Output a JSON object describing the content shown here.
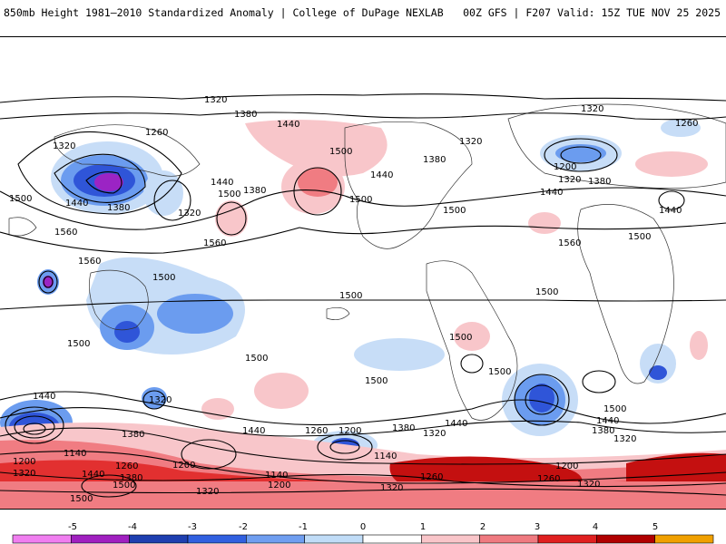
{
  "header": {
    "title_left": "850mb Height 1981–2010 Standardized Anomaly | College of DuPage NEXLAB",
    "title_right": "00Z GFS | F207 Valid: 15Z TUE NOV 25 2025"
  },
  "colorbar": {
    "ticks": [
      "-5",
      "-4",
      "-3",
      "-2",
      "-1",
      "0",
      "1",
      "2",
      "3",
      "4",
      "5"
    ],
    "colors": [
      "#f07ef0",
      "#a020c0",
      "#1e3fb0",
      "#3060e0",
      "#6f9ef0",
      "#c0dcf7",
      "#ffffff",
      "#f9c5c9",
      "#ef7a80",
      "#e02020",
      "#b00000",
      "#f0a000"
    ]
  },
  "map": {
    "contour_labels": [
      "1320",
      "1380",
      "1440",
      "1500",
      "1560",
      "1260",
      "1200",
      "1140"
    ]
  },
  "colors": {
    "negative_light": "#c7ddf7",
    "negative_mid": "#6b9cef",
    "negative_strong": "#2f55d8",
    "negative_deep": "#1d36a8",
    "negative_extreme": "#9b24c4",
    "positive_light": "#f8c6ca",
    "positive_mid": "#f07c82",
    "positive_strong": "#e23030",
    "positive_deep": "#c41010"
  }
}
